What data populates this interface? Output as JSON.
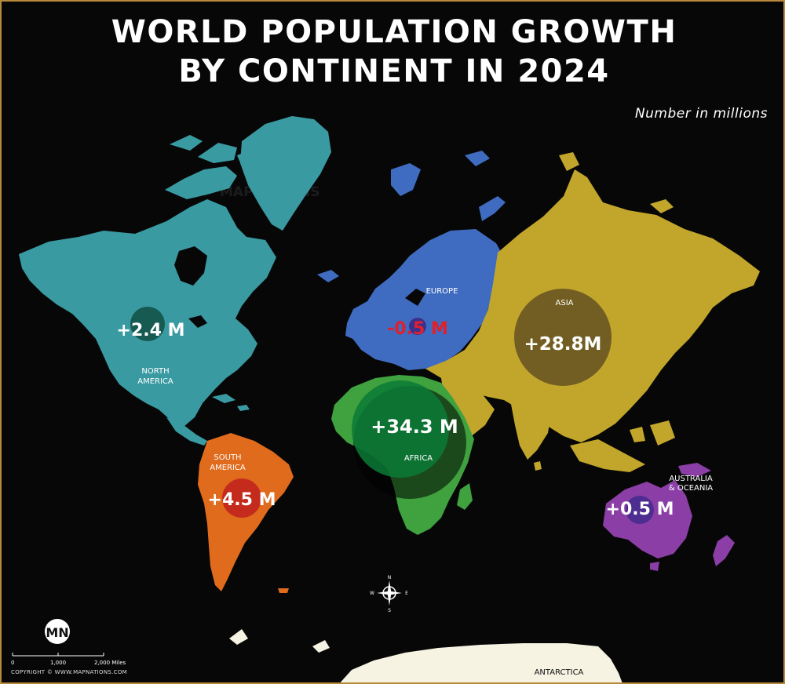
{
  "header": {
    "title_line1": "WORLD POPULATION GROWTH",
    "title_line2": "BY CONTINENT IN 2024",
    "subtitle": "Number in millions"
  },
  "continents": [
    {
      "id": "north-america",
      "name_line1": "NORTH",
      "name_line2": "AMERICA",
      "growth": 2.4,
      "growth_label": "+2.4 M",
      "color": "#3a9aa2",
      "bubble_color": "#14564e"
    },
    {
      "id": "south-america",
      "name_line1": "SOUTH",
      "name_line2": "AMERICA",
      "growth": 4.5,
      "growth_label": "+4.5 M",
      "color": "#e06b1c",
      "bubble_color": "#c2281e"
    },
    {
      "id": "europe",
      "name_line1": "EUROPE",
      "name_line2": "",
      "growth": -0.5,
      "growth_label": "-0.5 M",
      "color": "#3f6cc0",
      "bubble_color": "#3b2e8a",
      "label_color": "#e0202a"
    },
    {
      "id": "africa",
      "name_line1": "AFRICA",
      "name_line2": "",
      "growth": 34.3,
      "growth_label": "+34.3 M",
      "color": "#3fa23f",
      "bubble_color": "#0a7a36"
    },
    {
      "id": "asia",
      "name_line1": "ASIA",
      "name_line2": "",
      "growth": 28.8,
      "growth_label": "+28.8M",
      "color": "#c2a62c",
      "bubble_color": "#6e5a22"
    },
    {
      "id": "australia-oceania",
      "name_line1": "AUSTRALIA",
      "name_line2": "& OCEANIA",
      "growth": 0.5,
      "growth_label": "+0.5 M",
      "color": "#8a3ea6",
      "bubble_color": "#4a2c8e"
    },
    {
      "id": "antarctica",
      "name_line1": "ANTARCTICA",
      "name_line2": "",
      "color": "#f6f3e3"
    }
  ],
  "watermark": "MAPNATIONS",
  "logo_text": "MN",
  "compass": {
    "n": "N",
    "s": "S",
    "e": "E",
    "w": "W"
  },
  "scale_bar": {
    "ticks": [
      "0",
      "1,000",
      "2,000 Miles"
    ]
  },
  "copyright": "COPYRIGHT © WWW.MAPNATIONS.COM"
}
